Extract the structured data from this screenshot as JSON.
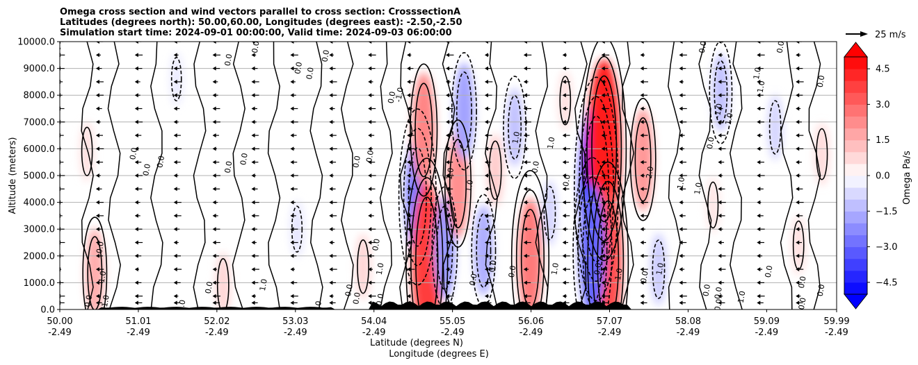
{
  "chart_data": {
    "type": "heatmap",
    "title_lines": [
      "Omega cross section and wind vectors parallel to cross section: CrosssectionA",
      "Latitudes (degrees north): 50.00,60.00, Longitudes (degrees east): -2.50,-2.50",
      "Simulation start time: 2024-09-01 00:00:00, Valid time: 2024-09-03 06:00:00"
    ],
    "ylabel": "Altitude (meters)",
    "xlabel_line1": "Latitude (degrees N)",
    "xlabel_line2": "Longitude (degrees E)",
    "xlim": [
      50.0,
      59.99
    ],
    "ylim": [
      0,
      10000
    ],
    "yticks": [
      {
        "value": 0,
        "label": "0.0"
      },
      {
        "value": 1000,
        "label": "1000.0"
      },
      {
        "value": 2000,
        "label": "2000.0"
      },
      {
        "value": 3000,
        "label": "3000.0"
      },
      {
        "value": 4000,
        "label": "4000.0"
      },
      {
        "value": 5000,
        "label": "5000.0"
      },
      {
        "value": 6000,
        "label": "6000.0"
      },
      {
        "value": 7000,
        "label": "7000.0"
      },
      {
        "value": 8000,
        "label": "8000.0"
      },
      {
        "value": 9000,
        "label": "9000.0"
      },
      {
        "value": 10000,
        "label": "10000.0"
      }
    ],
    "xticks": [
      {
        "lat": 50.0,
        "label": "50.00",
        "lon_label": "-2.49"
      },
      {
        "lat": 51.01,
        "label": "51.01",
        "lon_label": "-2.49"
      },
      {
        "lat": 52.02,
        "label": "52.02",
        "lon_label": "-2.49"
      },
      {
        "lat": 53.03,
        "label": "53.03",
        "lon_label": "-2.49"
      },
      {
        "lat": 54.04,
        "label": "54.04",
        "lon_label": "-2.49"
      },
      {
        "lat": 55.05,
        "label": "55.05",
        "lon_label": "-2.49"
      },
      {
        "lat": 56.06,
        "label": "56.06",
        "lon_label": "-2.49"
      },
      {
        "lat": 57.07,
        "label": "57.07",
        "lon_label": "-2.49"
      },
      {
        "lat": 58.08,
        "label": "58.08",
        "lon_label": "-2.49"
      },
      {
        "lat": 59.09,
        "label": "59.09",
        "lon_label": "-2.49"
      },
      {
        "lat": 59.99,
        "label": "59.99",
        "lon_label": "-2.49"
      }
    ],
    "grid": "horizontal",
    "colorbar": {
      "label": "Omega Pa/s",
      "range": [
        -5,
        5
      ],
      "step": 0.5,
      "ticks": [
        "4.5",
        "3.0",
        "1.5",
        "0.0",
        "−1.5",
        "−3.0",
        "−4.5"
      ],
      "tick_values": [
        4.5,
        3.0,
        1.5,
        0.0,
        -1.5,
        -3.0,
        -4.5
      ],
      "extend": "both",
      "cmap": "bwr"
    },
    "quiver_key": {
      "label": "25 m/s",
      "speed": 25
    },
    "omega_features": [
      {
        "lat": 50.45,
        "alt": 1350,
        "omega": 1.6
      },
      {
        "lat": 50.35,
        "alt": 5900,
        "omega": 0.6
      },
      {
        "lat": 51.5,
        "alt": 8600,
        "omega": -0.4
      },
      {
        "lat": 52.1,
        "alt": 900,
        "omega": 0.8
      },
      {
        "lat": 53.05,
        "alt": 3000,
        "omega": -0.5
      },
      {
        "lat": 53.9,
        "alt": 1600,
        "omega": 0.8
      },
      {
        "lat": 54.6,
        "alt": 4200,
        "omega": -2.6
      },
      {
        "lat": 54.68,
        "alt": 6700,
        "omega": 2.4
      },
      {
        "lat": 54.72,
        "alt": 1800,
        "omega": 3.8
      },
      {
        "lat": 54.95,
        "alt": 2300,
        "omega": -2.0
      },
      {
        "lat": 55.12,
        "alt": 4700,
        "omega": 2.2
      },
      {
        "lat": 55.2,
        "alt": 7400,
        "omega": -1.8
      },
      {
        "lat": 55.45,
        "alt": 2200,
        "omega": -1.6
      },
      {
        "lat": 55.6,
        "alt": 5200,
        "omega": 1.0
      },
      {
        "lat": 55.85,
        "alt": 6800,
        "omega": -1.2
      },
      {
        "lat": 56.05,
        "alt": 1900,
        "omega": 2.6
      },
      {
        "lat": 56.3,
        "alt": 3600,
        "omega": -0.8
      },
      {
        "lat": 56.5,
        "alt": 7800,
        "omega": 0.6
      },
      {
        "lat": 56.9,
        "alt": 4500,
        "omega": -4.5
      },
      {
        "lat": 57.0,
        "alt": 6000,
        "omega": 4.5
      },
      {
        "lat": 57.05,
        "alt": 1800,
        "omega": 3.5
      },
      {
        "lat": 56.85,
        "alt": 2200,
        "omega": -3.0
      },
      {
        "lat": 57.5,
        "alt": 5600,
        "omega": 2.0
      },
      {
        "lat": 57.7,
        "alt": 1500,
        "omega": -1.0
      },
      {
        "lat": 58.5,
        "alt": 8100,
        "omega": -1.2
      },
      {
        "lat": 58.4,
        "alt": 3900,
        "omega": 0.5
      },
      {
        "lat": 59.2,
        "alt": 6800,
        "omega": -0.8
      },
      {
        "lat": 59.8,
        "alt": 5800,
        "omega": 0.7
      },
      {
        "lat": 59.5,
        "alt": 2400,
        "omega": 0.6
      }
    ],
    "contour_labels": [
      {
        "lat": 50.0,
        "alt": 9600,
        "text": "0.0"
      },
      {
        "lat": 52.55,
        "alt": 9780,
        "text": "0.0"
      },
      {
        "lat": 53.25,
        "alt": 8800,
        "text": "0.0"
      },
      {
        "lat": 53.45,
        "alt": 9450,
        "text": "0.0"
      },
      {
        "lat": 52.2,
        "alt": 9300,
        "text": "0.0"
      },
      {
        "lat": 53.1,
        "alt": 9000,
        "text": "0.0"
      },
      {
        "lat": 54.3,
        "alt": 7900,
        "text": "0.0"
      },
      {
        "lat": 54.4,
        "alt": 8000,
        "text": "-1.0"
      },
      {
        "lat": 58.3,
        "alt": 9780,
        "text": "0.0"
      },
      {
        "lat": 59.3,
        "alt": 9780,
        "text": "0.0"
      },
      {
        "lat": 59.0,
        "alt": 8800,
        "text": "1.0"
      },
      {
        "lat": 59.05,
        "alt": 8300,
        "text": "1.0"
      },
      {
        "lat": 59.82,
        "alt": 8500,
        "text": "0.0"
      },
      {
        "lat": 50.98,
        "alt": 5800,
        "text": "0.0"
      },
      {
        "lat": 51.33,
        "alt": 5500,
        "text": "0.0"
      },
      {
        "lat": 51.15,
        "alt": 5200,
        "text": "0.0"
      },
      {
        "lat": 52.2,
        "alt": 5300,
        "text": "0.0"
      },
      {
        "lat": 52.4,
        "alt": 5600,
        "text": "0.0"
      },
      {
        "lat": 53.85,
        "alt": 5500,
        "text": "0.0"
      },
      {
        "lat": 54.02,
        "alt": 5700,
        "text": "0.0"
      },
      {
        "lat": 55.05,
        "alt": 5050,
        "text": "1.0"
      },
      {
        "lat": 55.3,
        "alt": 4600,
        "text": "1.0"
      },
      {
        "lat": 55.9,
        "alt": 6400,
        "text": "1.0"
      },
      {
        "lat": 56.15,
        "alt": 5300,
        "text": "0.0"
      },
      {
        "lat": 56.35,
        "alt": 6200,
        "text": "1.0"
      },
      {
        "lat": 56.55,
        "alt": 4800,
        "text": "0.0"
      },
      {
        "lat": 57.62,
        "alt": 5100,
        "text": "2.0"
      },
      {
        "lat": 58.02,
        "alt": 4700,
        "text": "1.0"
      },
      {
        "lat": 58.24,
        "alt": 4500,
        "text": "1.0"
      },
      {
        "lat": 58.4,
        "alt": 6200,
        "text": "0.0"
      },
      {
        "lat": 58.5,
        "alt": 7400,
        "text": "-1.0"
      },
      {
        "lat": 58.64,
        "alt": 7100,
        "text": "1.0"
      },
      {
        "lat": 50.55,
        "alt": 2300,
        "text": "0.0"
      },
      {
        "lat": 50.58,
        "alt": 1200,
        "text": "1.0"
      },
      {
        "lat": 50.4,
        "alt": 300,
        "text": "0.0"
      },
      {
        "lat": 50.62,
        "alt": 300,
        "text": "1.0"
      },
      {
        "lat": 51.6,
        "alt": 120,
        "text": "0.0"
      },
      {
        "lat": 51.95,
        "alt": 800,
        "text": "0.0"
      },
      {
        "lat": 52.65,
        "alt": 900,
        "text": "1.0"
      },
      {
        "lat": 53.35,
        "alt": 80,
        "text": "0.0"
      },
      {
        "lat": 53.75,
        "alt": 700,
        "text": "0.0"
      },
      {
        "lat": 53.85,
        "alt": 400,
        "text": "0.0"
      },
      {
        "lat": 54.1,
        "alt": 2400,
        "text": "0.0"
      },
      {
        "lat": 54.15,
        "alt": 1500,
        "text": "1.0"
      },
      {
        "lat": 54.15,
        "alt": 350,
        "text": "0.0"
      },
      {
        "lat": 55.35,
        "alt": 1100,
        "text": "0.0"
      },
      {
        "lat": 55.6,
        "alt": 1600,
        "text": "0.0"
      },
      {
        "lat": 55.85,
        "alt": 1400,
        "text": "0.0"
      },
      {
        "lat": 56.4,
        "alt": 1500,
        "text": "1.0"
      },
      {
        "lat": 57.55,
        "alt": 1200,
        "text": "0.0"
      },
      {
        "lat": 57.75,
        "alt": 1500,
        "text": "1.0"
      },
      {
        "lat": 58.35,
        "alt": 700,
        "text": "0.0"
      },
      {
        "lat": 58.5,
        "alt": 600,
        "text": "0.0"
      },
      {
        "lat": 58.8,
        "alt": 450,
        "text": "1.0"
      },
      {
        "lat": 59.15,
        "alt": 1400,
        "text": "0.0"
      },
      {
        "lat": 59.58,
        "alt": 1000,
        "text": "0.0"
      },
      {
        "lat": 59.58,
        "alt": 200,
        "text": "0.0"
      },
      {
        "lat": 59.82,
        "alt": 700,
        "text": "0.0"
      },
      {
        "lat": 58.5,
        "alt": 150,
        "text": "0.0"
      },
      {
        "lat": 56.95,
        "alt": 1500,
        "text": "0.0"
      },
      {
        "lat": 57.22,
        "alt": 1300,
        "text": "1.0"
      }
    ],
    "wind_vectors": {
      "levels": [
        250,
        500,
        1000,
        1500,
        2000,
        2500,
        3000,
        3500,
        4000,
        4500,
        5000,
        5500,
        6000,
        6500,
        7000,
        7500,
        8000,
        8500,
        9000,
        9500,
        10000
      ],
      "lat_spacing": 0.5,
      "direction": "southward",
      "typical_speed": 9
    }
  }
}
